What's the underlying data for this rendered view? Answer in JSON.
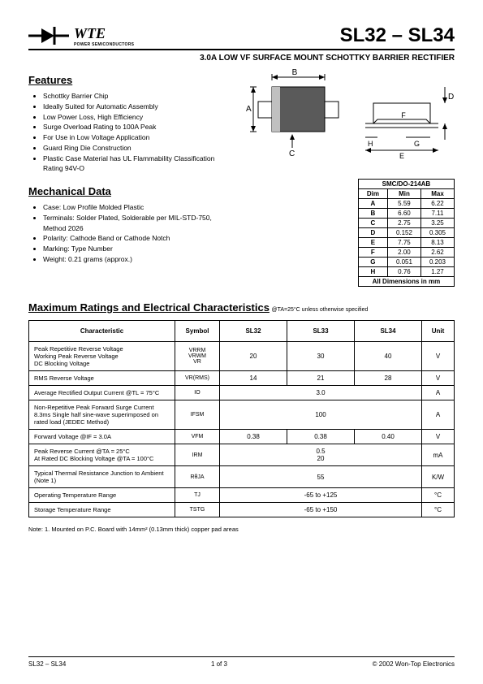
{
  "header": {
    "logo_text": "WTE",
    "logo_sub": "POWER SEMICONDUCTORS",
    "part_title": "SL32 – SL34",
    "subtitle": "3.0A LOW VF SURFACE MOUNT SCHOTTKY BARRIER RECTIFIER"
  },
  "features": {
    "heading": "Features",
    "items": [
      "Schottky Barrier Chip",
      "Ideally Suited for Automatic Assembly",
      "Low Power Loss, High Efficiency",
      "Surge Overload Rating to 100A Peak",
      "For Use in Low Voltage Application",
      "Guard Ring Die Construction",
      "Plastic Case Material has UL Flammability Classification Rating 94V-O"
    ]
  },
  "mech": {
    "heading": "Mechanical Data",
    "items": [
      "Case: Low Profile Molded Plastic",
      "Terminals: Solder Plated, Solderable per MIL-STD-750, Method 2026",
      "Polarity: Cathode Band or Cathode Notch",
      "Marking: Type Number",
      "Weight: 0.21 grams (approx.)"
    ]
  },
  "dim_table": {
    "title": "SMC/DO-214AB",
    "header": [
      "Dim",
      "Min",
      "Max"
    ],
    "rows": [
      [
        "A",
        "5.59",
        "6.22"
      ],
      [
        "B",
        "6.60",
        "7.11"
      ],
      [
        "C",
        "2.75",
        "3.25"
      ],
      [
        "D",
        "0.152",
        "0.305"
      ],
      [
        "E",
        "7.75",
        "8.13"
      ],
      [
        "F",
        "2.00",
        "2.62"
      ],
      [
        "G",
        "0.051",
        "0.203"
      ],
      [
        "H",
        "0.76",
        "1.27"
      ]
    ],
    "footer": "All Dimensions in mm"
  },
  "char": {
    "heading": "Maximum Ratings and Electrical Characteristics",
    "cond": " @TA=25°C unless otherwise specified",
    "header": [
      "Characteristic",
      "Symbol",
      "SL32",
      "SL33",
      "SL34",
      "Unit"
    ],
    "rows": [
      {
        "name": "Peak Repetitive Reverse Voltage\nWorking Peak Reverse Voltage\nDC Blocking Voltage",
        "sym": "VRRM\nVRWM\nVR",
        "v": [
          "20",
          "30",
          "40"
        ],
        "unit": "V"
      },
      {
        "name": "RMS Reverse Voltage",
        "sym": "VR(RMS)",
        "v": [
          "14",
          "21",
          "28"
        ],
        "unit": "V"
      },
      {
        "name": "Average Rectified Output Current          @TL = 75°C",
        "sym": "IO",
        "span": "3.0",
        "unit": "A"
      },
      {
        "name": "Non-Repetitive Peak Forward Surge Current\n8.3ms Single half sine-wave superimposed on\nrated load (JEDEC Method)",
        "sym": "IFSM",
        "span": "100",
        "unit": "A"
      },
      {
        "name": "Forward Voltage                                    @IF = 3.0A",
        "sym": "VFM",
        "v": [
          "0.38",
          "0.38",
          "0.40"
        ],
        "unit": "V"
      },
      {
        "name": "Peak Reverse Current                   @TA = 25°C\nAt Rated DC Blocking Voltage       @TA = 100°C",
        "sym": "IRM",
        "span": "0.5\n20",
        "unit": "mA"
      },
      {
        "name": "Typical Thermal Resistance Junction to Ambient\n(Note 1)",
        "sym": "RθJA",
        "span": "55",
        "unit": "K/W"
      },
      {
        "name": "Operating Temperature Range",
        "sym": "TJ",
        "span": "-65 to +125",
        "unit": "°C"
      },
      {
        "name": "Storage Temperature Range",
        "sym": "TSTG",
        "span": "-65 to +150",
        "unit": "°C"
      }
    ]
  },
  "note": "Note:  1. Mounted on P.C. Board with 14mm² (0.13mm thick) copper pad areas",
  "footer": {
    "left": "SL32 – SL34",
    "center": "1 of 3",
    "right": "© 2002 Won-Top Electronics"
  },
  "colors": {
    "text": "#000000",
    "bg": "#ffffff"
  }
}
